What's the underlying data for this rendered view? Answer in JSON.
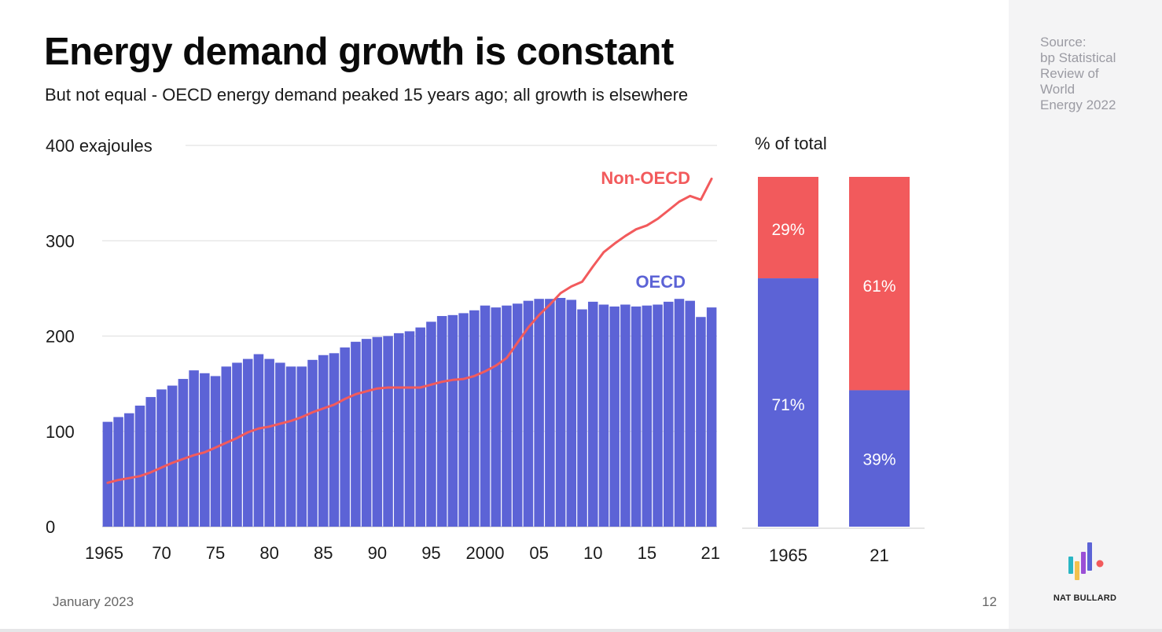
{
  "header": {
    "title": "Energy demand growth is constant",
    "subtitle": "But not equal - OECD energy demand peaked 15 years ago; all growth is elsewhere"
  },
  "sidebar": {
    "source": "Source:\nbp Statistical\nReview of\nWorld\nEnergy 2022",
    "brand_name": "NAT BULLARD"
  },
  "footer": {
    "date": "January 2023",
    "page_number": "12"
  },
  "colors": {
    "oecd": "#5c63d6",
    "non_oecd": "#f25a5c",
    "grid": "#dddddd"
  },
  "chart_data": [
    {
      "type": "bar",
      "ylabel": "400 exajoules",
      "ylim": [
        0,
        400
      ],
      "yticks": [
        0,
        100,
        200,
        300,
        400
      ],
      "ytick_labels": [
        "0",
        "100",
        "200",
        "300",
        "400 exajoules"
      ],
      "x": [
        1965,
        1966,
        1967,
        1968,
        1969,
        1970,
        1971,
        1972,
        1973,
        1974,
        1975,
        1976,
        1977,
        1978,
        1979,
        1980,
        1981,
        1982,
        1983,
        1984,
        1985,
        1986,
        1987,
        1988,
        1989,
        1990,
        1991,
        1992,
        1993,
        1994,
        1995,
        1996,
        1997,
        1998,
        1999,
        2000,
        2001,
        2002,
        2003,
        2004,
        2005,
        2006,
        2007,
        2008,
        2009,
        2010,
        2011,
        2012,
        2013,
        2014,
        2015,
        2016,
        2017,
        2018,
        2019,
        2020,
        2021
      ],
      "xtick_labels": [
        {
          "x": 1965,
          "label": "1965"
        },
        {
          "x": 1970,
          "label": "70"
        },
        {
          "x": 1975,
          "label": "75"
        },
        {
          "x": 1980,
          "label": "80"
        },
        {
          "x": 1985,
          "label": "85"
        },
        {
          "x": 1990,
          "label": "90"
        },
        {
          "x": 1995,
          "label": "95"
        },
        {
          "x": 2000,
          "label": "2000"
        },
        {
          "x": 2005,
          "label": "05"
        },
        {
          "x": 2010,
          "label": "10"
        },
        {
          "x": 2015,
          "label": "15"
        },
        {
          "x": 2021,
          "label": "21"
        }
      ],
      "series": [
        {
          "name": "OECD",
          "kind": "bar",
          "values": [
            110,
            115,
            119,
            127,
            136,
            144,
            148,
            155,
            164,
            161,
            158,
            168,
            172,
            176,
            181,
            176,
            172,
            168,
            168,
            175,
            180,
            182,
            188,
            194,
            197,
            199,
            200,
            203,
            205,
            209,
            215,
            221,
            222,
            224,
            227,
            232,
            230,
            232,
            234,
            237,
            239,
            239,
            240,
            238,
            228,
            236,
            233,
            231,
            233,
            231,
            232,
            233,
            236,
            239,
            237,
            220,
            230
          ]
        },
        {
          "name": "Non-OECD",
          "kind": "line",
          "values": [
            46,
            49,
            51,
            53,
            57,
            62,
            67,
            71,
            75,
            78,
            83,
            88,
            93,
            99,
            103,
            105,
            108,
            111,
            115,
            120,
            124,
            128,
            134,
            139,
            142,
            145,
            146,
            146,
            146,
            146,
            149,
            152,
            154,
            155,
            158,
            163,
            169,
            177,
            193,
            209,
            222,
            233,
            245,
            252,
            257,
            273,
            288,
            297,
            305,
            312,
            316,
            323,
            332,
            341,
            347,
            343,
            365
          ]
        }
      ]
    },
    {
      "type": "bar",
      "stacked": true,
      "percent": true,
      "ylabel": "% of total",
      "categories": [
        "1965",
        "21"
      ],
      "series": [
        {
          "name": "OECD",
          "values": [
            71,
            39
          ],
          "labels": [
            "71%",
            "39%"
          ]
        },
        {
          "name": "Non-OECD",
          "values": [
            29,
            61
          ],
          "labels": [
            "29%",
            "61%"
          ]
        }
      ]
    }
  ]
}
